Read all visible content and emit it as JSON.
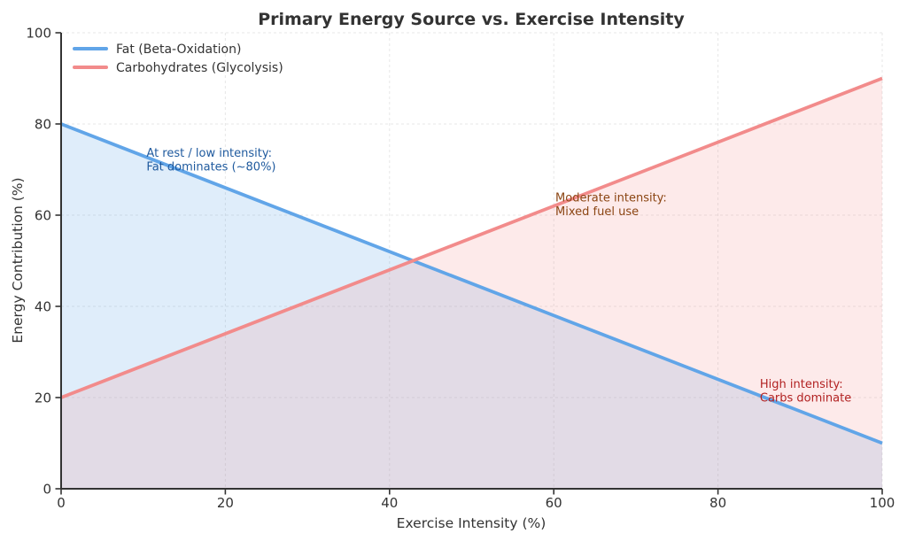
{
  "chart_data": {
    "type": "line",
    "title": "Primary Energy Source vs. Exercise Intensity",
    "xlabel": "Exercise Intensity (%)",
    "ylabel": "Energy Contribution (%)",
    "xlim": [
      0,
      100
    ],
    "ylim": [
      0,
      100
    ],
    "xticks": [
      0,
      20,
      40,
      60,
      80,
      100
    ],
    "yticks": [
      0,
      20,
      40,
      60,
      80,
      100
    ],
    "grid": true,
    "legend_position": "upper-left",
    "series": [
      {
        "name": "Fat (Beta-Oxidation)",
        "color": "#61a5e8",
        "fill_opacity": 0.2,
        "x": [
          0,
          100
        ],
        "values": [
          80,
          10
        ]
      },
      {
        "name": "Carbohydrates (Glycolysis)",
        "color": "#f28b8b",
        "fill_opacity": 0.18,
        "x": [
          0,
          100
        ],
        "values": [
          20,
          90
        ]
      }
    ],
    "crossover_point": {
      "x": 42.9,
      "y": 50
    },
    "annotations": [
      {
        "lines": [
          "At rest / low intensity:",
          "Fat dominates (~80%)"
        ],
        "x": 10.4,
        "y": 72.8,
        "color": "#1f5a9e"
      },
      {
        "lines": [
          "Moderate intensity:",
          "Mixed fuel use"
        ],
        "x": 60.2,
        "y": 63.0,
        "color": "#8b4513"
      },
      {
        "lines": [
          "High intensity:",
          "Carbs dominate"
        ],
        "x": 85.1,
        "y": 22.1,
        "color": "#b22222"
      }
    ]
  }
}
